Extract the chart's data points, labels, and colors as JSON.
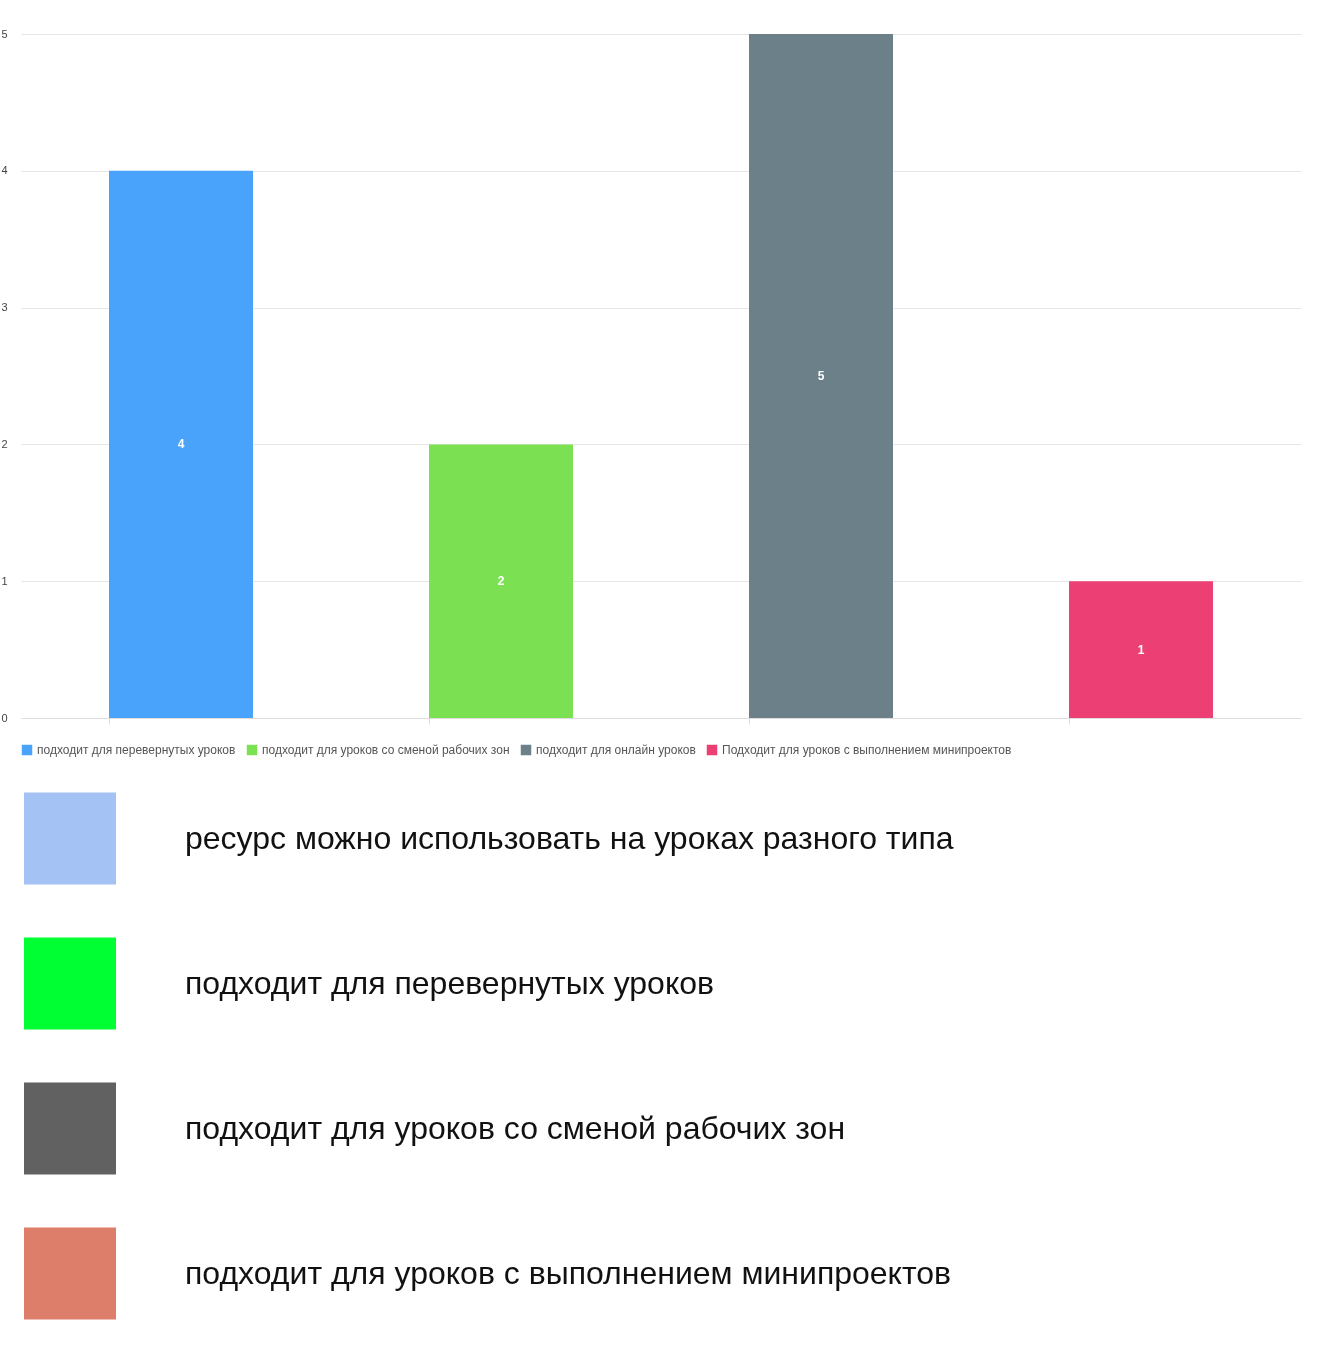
{
  "chart_data": [
    {
      "type": "bar",
      "categories": [
        null,
        null,
        null,
        null
      ],
      "series": [
        {
          "name": "подходит для перевернутых уроков",
          "color": "#4aa3fb",
          "values": [
            4,
            null,
            null,
            null
          ]
        },
        {
          "name": "подходит для уроков со сменой рабочих зон",
          "color": "#7be052",
          "values": [
            null,
            2,
            null,
            null
          ]
        },
        {
          "name": "подходит для онлайн уроков",
          "color": "#6b8088",
          "values": [
            null,
            null,
            5,
            null
          ]
        },
        {
          "name": "Подходит для уроков с выполнением минипроектов",
          "color": "#ec3f74",
          "values": [
            null,
            null,
            null,
            1
          ]
        }
      ],
      "ylim": [
        0,
        5
      ],
      "yticks": [
        0,
        1,
        2,
        3,
        4,
        5
      ],
      "grid": "y",
      "legend": "bottom",
      "data_labels": true
    },
    {
      "type": "other",
      "annotations": [
        "ресурс можно использовать на уроках разного типа",
        "подходит для перевернутых уроков",
        "подходит для уроков со сменой рабочих зон",
        "подходит для уроков с выполнением минипроектов"
      ]
    }
  ]
}
